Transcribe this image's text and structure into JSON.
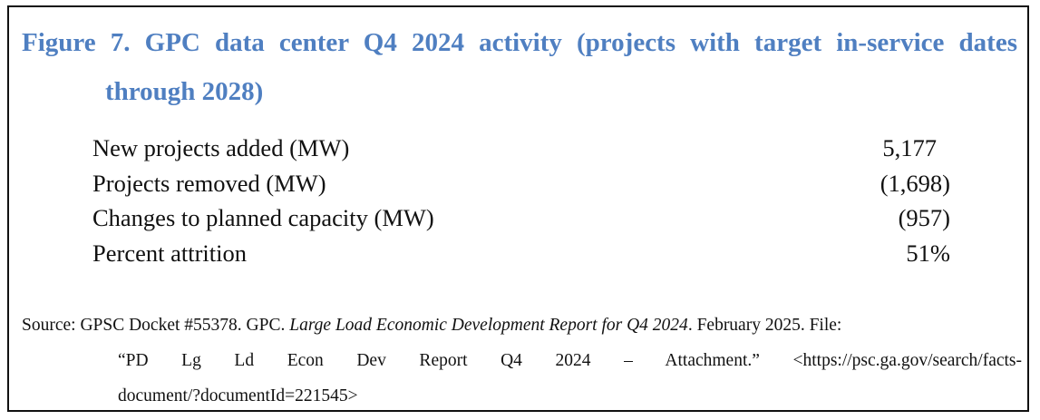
{
  "figure": {
    "title_line1": "Figure 7. GPC data center Q4 2024 activity (projects with target in-service dates",
    "title_line2": "through 2028)",
    "title_color": "#4f7fc1"
  },
  "table": {
    "rows": [
      {
        "label": "New projects added (MW)",
        "value": "5,177"
      },
      {
        "label": "Projects removed (MW)",
        "value": "(1,698)"
      },
      {
        "label": "Changes to planned capacity (MW)",
        "value": "(957)"
      },
      {
        "label": "Percent attrition",
        "value": "51%"
      }
    ]
  },
  "source": {
    "prefix": "Source: GPSC Docket #55378. GPC. ",
    "report_title": "Large Load Economic Development Report for Q4 2024",
    "after_title": ". February 2025. File:",
    "line2": "“PD Lg Ld Econ Dev Report Q4 2024 – Attachment.” <https://psc.ga.gov/search/facts-",
    "line3": "document/?documentId=221545>"
  }
}
